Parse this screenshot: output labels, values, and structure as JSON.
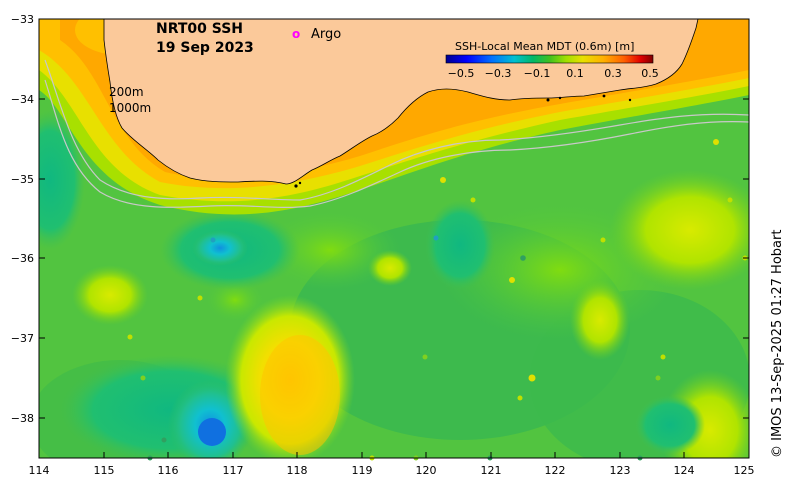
{
  "map": {
    "title_line1": "NRT00 SSH",
    "title_line2": "19 Sep 2023",
    "argo_marker": "o",
    "argo_label": "Argo",
    "argo_color": "#ff00ff",
    "depth_label_1": "200m",
    "depth_label_2": "1000m",
    "land_color": "#fbc99a",
    "credit": "© IMOS 13-Sep-2025 01:27 Hobart"
  },
  "colorbar": {
    "title": "SSH-Local Mean MDT (0.6m) [m]",
    "ticks": [
      "−0.5",
      "−0.3",
      "−0.1",
      "0.1",
      "0.3",
      "0.5"
    ],
    "colors": [
      "#00008f",
      "#0000ff",
      "#0080ff",
      "#00c0c0",
      "#00b050",
      "#40c020",
      "#80e000",
      "#e0e000",
      "#ffc000",
      "#ff8000",
      "#e00000",
      "#800000"
    ]
  },
  "axes": {
    "x_ticks": [
      "114",
      "115",
      "116",
      "117",
      "118",
      "119",
      "120",
      "121",
      "122",
      "123",
      "124",
      "125"
    ],
    "y_ticks": [
      "−33",
      "−34",
      "−35",
      "−36",
      "−37",
      "−38"
    ],
    "x_range": [
      114,
      125
    ],
    "y_range": [
      -38.5,
      -33
    ]
  }
}
